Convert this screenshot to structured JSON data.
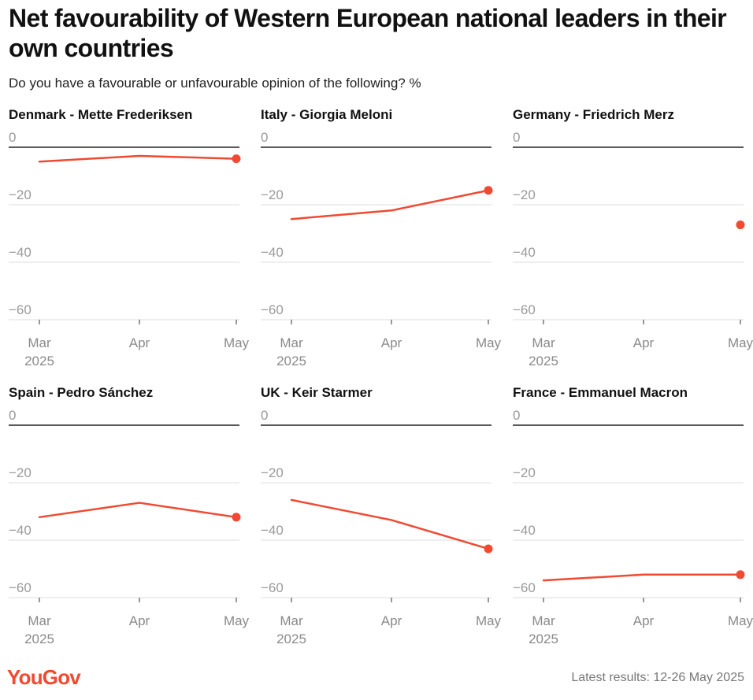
{
  "title": "Net favourability of Western European national leaders in their own countries",
  "subtitle": "Do you have a favourable or unfavourable opinion of the following? %",
  "footer": {
    "logo": "YouGov",
    "note": "Latest results: 12-26 May 2025"
  },
  "colors": {
    "line": "#f04a32",
    "grid": "#dddddd",
    "zero": "#222222"
  },
  "chart_data": [
    {
      "type": "line",
      "title": "Denmark - Mette Frederiksen",
      "categories": [
        "Mar",
        "Apr",
        "May"
      ],
      "year_label": "2025",
      "y_ticks": [
        "0",
        "−20",
        "−40",
        "−60"
      ],
      "ylim": [
        -60,
        0
      ],
      "series": [
        {
          "values": [
            -5,
            -3,
            -4
          ]
        }
      ]
    },
    {
      "type": "line",
      "title": "Italy - Giorgia Meloni",
      "categories": [
        "Mar",
        "Apr",
        "May"
      ],
      "year_label": "2025",
      "y_ticks": [
        "0",
        "−20",
        "−40",
        "−60"
      ],
      "ylim": [
        -60,
        0
      ],
      "series": [
        {
          "values": [
            -25,
            -22,
            -15
          ]
        }
      ]
    },
    {
      "type": "line",
      "title": "Germany - Friedrich Merz",
      "categories": [
        "Mar",
        "Apr",
        "May"
      ],
      "year_label": "2025",
      "y_ticks": [
        "0",
        "−20",
        "−40",
        "−60"
      ],
      "ylim": [
        -60,
        0
      ],
      "series": [
        {
          "values": [
            null,
            null,
            -27
          ]
        }
      ]
    },
    {
      "type": "line",
      "title": "Spain - Pedro Sánchez",
      "categories": [
        "Mar",
        "Apr",
        "May"
      ],
      "year_label": "2025",
      "y_ticks": [
        "0",
        "−20",
        "−40",
        "−60"
      ],
      "ylim": [
        -60,
        0
      ],
      "series": [
        {
          "values": [
            -32,
            -27,
            -32
          ]
        }
      ]
    },
    {
      "type": "line",
      "title": "UK - Keir Starmer",
      "categories": [
        "Mar",
        "Apr",
        "May"
      ],
      "year_label": "2025",
      "y_ticks": [
        "0",
        "−20",
        "−40",
        "−60"
      ],
      "ylim": [
        -60,
        0
      ],
      "series": [
        {
          "values": [
            -26,
            -33,
            -43
          ]
        }
      ]
    },
    {
      "type": "line",
      "title": "France - Emmanuel Macron",
      "categories": [
        "Mar",
        "Apr",
        "May"
      ],
      "year_label": "2025",
      "y_ticks": [
        "0",
        "−20",
        "−40",
        "−60"
      ],
      "ylim": [
        -60,
        0
      ],
      "series": [
        {
          "values": [
            -54,
            -52,
            -52
          ]
        }
      ]
    }
  ]
}
